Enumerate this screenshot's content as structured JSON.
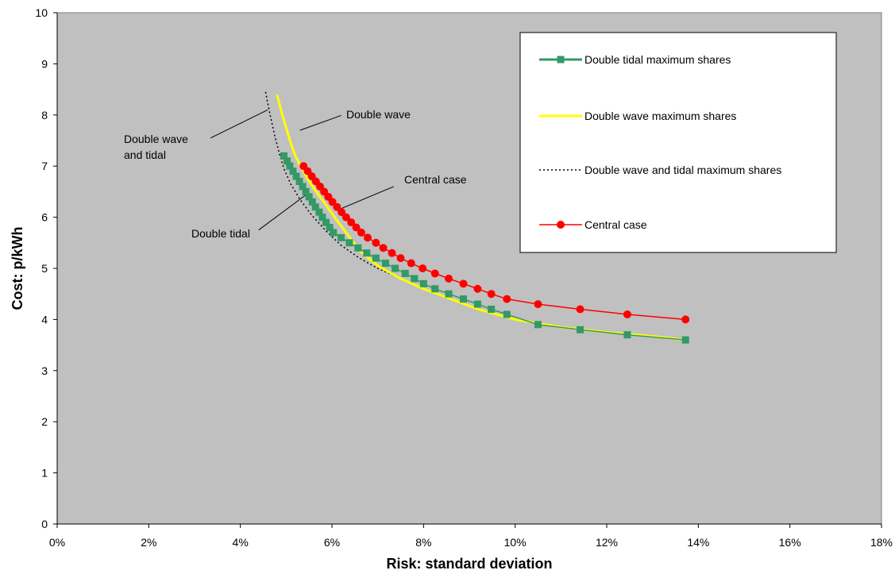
{
  "chart_data": {
    "type": "scatter",
    "xlabel": "Risk: standard deviation",
    "ylabel": "Cost: p/kWh",
    "xlim": [
      0,
      18
    ],
    "ylim": [
      0,
      10
    ],
    "x_unit": "%",
    "x_ticks": [
      "0%",
      "2%",
      "4%",
      "6%",
      "8%",
      "10%",
      "12%",
      "14%",
      "16%",
      "18%"
    ],
    "y_ticks": [
      "0",
      "1",
      "2",
      "3",
      "4",
      "5",
      "6",
      "7",
      "8",
      "9",
      "10"
    ],
    "grid": false,
    "plot_background": "#c0c0c0",
    "legend_position": "top-right",
    "series": [
      {
        "name": "Double tidal maximum shares",
        "color": "#339966",
        "marker": "square",
        "line": "solid",
        "x": [
          4.95,
          5.02,
          5.08,
          5.15,
          5.22,
          5.29,
          5.36,
          5.43,
          5.5,
          5.57,
          5.64,
          5.72,
          5.79,
          5.87,
          5.95,
          6.03,
          6.2,
          6.38,
          6.57,
          6.76,
          6.96,
          7.17,
          7.38,
          7.6,
          7.8,
          8.0,
          8.25,
          8.55,
          8.87,
          9.18,
          9.48,
          9.82,
          10.5,
          11.42,
          12.45,
          13.72
        ],
        "y": [
          7.2,
          7.1,
          7.0,
          6.9,
          6.8,
          6.7,
          6.6,
          6.5,
          6.4,
          6.3,
          6.2,
          6.1,
          6.0,
          5.9,
          5.8,
          5.7,
          5.6,
          5.5,
          5.4,
          5.3,
          5.2,
          5.1,
          5.0,
          4.9,
          4.8,
          4.7,
          4.6,
          4.5,
          4.4,
          4.3,
          4.2,
          4.1,
          3.9,
          3.8,
          3.7,
          3.6
        ]
      },
      {
        "name": "Double wave maximum shares",
        "color": "#ffff00",
        "marker": "none",
        "line": "solid",
        "x": [
          4.8,
          4.9,
          5.0,
          5.1,
          5.2,
          5.35,
          5.5,
          5.7,
          5.9,
          6.1,
          6.35,
          6.6,
          7.0,
          7.5,
          8.0,
          8.6,
          9.2,
          10.0,
          11.0,
          12.0,
          13.0,
          13.72
        ],
        "y": [
          8.4,
          8.05,
          7.75,
          7.45,
          7.2,
          6.95,
          6.7,
          6.45,
          6.2,
          5.95,
          5.65,
          5.35,
          5.05,
          4.8,
          4.6,
          4.4,
          4.2,
          4.0,
          3.85,
          3.75,
          3.67,
          3.6
        ]
      },
      {
        "name": "Double wave and tidal maximum shares",
        "color": "#000000",
        "marker": "none",
        "line": "dotted",
        "x": [
          4.55,
          4.65,
          4.75,
          4.85,
          4.95,
          5.1,
          5.3,
          5.55,
          5.85,
          6.2,
          6.6,
          7.0,
          7.5,
          8.0,
          8.6,
          9.2,
          10.0,
          11.0,
          12.0,
          13.0,
          13.72
        ],
        "y": [
          8.45,
          8.0,
          7.6,
          7.25,
          6.95,
          6.65,
          6.35,
          6.05,
          5.75,
          5.45,
          5.2,
          5.0,
          4.8,
          4.6,
          4.4,
          4.2,
          4.0,
          3.85,
          3.75,
          3.67,
          3.6
        ]
      },
      {
        "name": "Central case",
        "color": "#ff0000",
        "marker": "circle",
        "line": "solid",
        "x": [
          5.38,
          5.47,
          5.56,
          5.65,
          5.74,
          5.83,
          5.92,
          6.01,
          6.11,
          6.21,
          6.31,
          6.42,
          6.53,
          6.64,
          6.78,
          6.96,
          7.12,
          7.31,
          7.5,
          7.73,
          7.98,
          8.25,
          8.55,
          8.87,
          9.18,
          9.48,
          9.82,
          10.5,
          11.42,
          12.45,
          13.72
        ],
        "y": [
          7.0,
          6.9,
          6.8,
          6.7,
          6.6,
          6.5,
          6.4,
          6.3,
          6.2,
          6.1,
          6.0,
          5.9,
          5.8,
          5.7,
          5.6,
          5.5,
          5.4,
          5.3,
          5.2,
          5.1,
          5.0,
          4.9,
          4.8,
          4.7,
          4.6,
          4.5,
          4.4,
          4.3,
          4.2,
          4.1,
          4.0
        ]
      }
    ],
    "annotations": [
      {
        "text_lines": [
          "Double wave",
          "and tidal"
        ],
        "target": [
          4.6,
          8.1
        ],
        "anchor": [
          3.35,
          7.55
        ]
      },
      {
        "text_lines": [
          "Double wave"
        ],
        "target": [
          5.3,
          7.7
        ],
        "anchor": [
          6.2,
          7.99
        ]
      },
      {
        "text_lines": [
          "Central case"
        ],
        "target": [
          6.15,
          6.15
        ],
        "anchor": [
          7.35,
          6.6
        ]
      },
      {
        "text_lines": [
          "Double tidal"
        ],
        "target": [
          5.45,
          6.45
        ],
        "anchor": [
          4.4,
          5.75
        ]
      }
    ]
  }
}
